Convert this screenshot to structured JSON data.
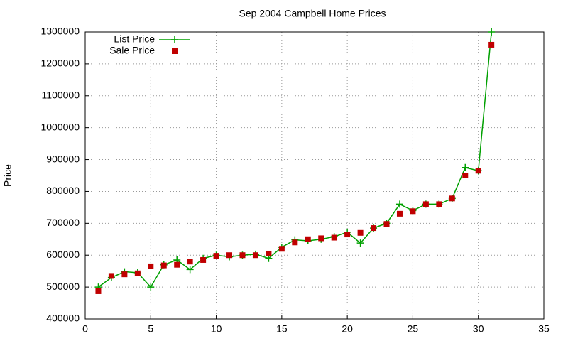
{
  "chart_data": {
    "type": "line",
    "title": "Sep 2004 Campbell Home Prices",
    "y_label": "Price",
    "x": [
      1,
      2,
      3,
      4,
      5,
      6,
      7,
      8,
      9,
      10,
      11,
      12,
      13,
      14,
      15,
      16,
      17,
      18,
      19,
      20,
      21,
      22,
      23,
      24,
      25,
      26,
      27,
      28,
      29,
      30,
      31
    ],
    "series": [
      {
        "name": "List Price",
        "color": "#00a000",
        "line": true,
        "marker": "plus",
        "values": [
          500000,
          530000,
          548000,
          545000,
          500000,
          570000,
          585000,
          555000,
          590000,
          600000,
          595000,
          600000,
          603000,
          590000,
          625000,
          648000,
          645000,
          650000,
          658000,
          672000,
          638000,
          685000,
          700000,
          760000,
          740000,
          760000,
          760000,
          778000,
          875000,
          865000,
          1300000
        ]
      },
      {
        "name": "Sale Price",
        "color": "#c00000",
        "line": false,
        "marker": "square",
        "values": [
          487000,
          535000,
          540000,
          543000,
          565000,
          568000,
          570000,
          580000,
          585000,
          598000,
          600000,
          600000,
          600000,
          605000,
          620000,
          640000,
          650000,
          653000,
          655000,
          665000,
          670000,
          685000,
          698000,
          730000,
          738000,
          760000,
          760000,
          778000,
          850000,
          865000,
          1260000
        ]
      }
    ],
    "xlim": [
      0,
      35
    ],
    "xticks": [
      0,
      5,
      10,
      15,
      20,
      25,
      30,
      35
    ],
    "ylim": [
      400000,
      1300000
    ],
    "yticks": [
      400000,
      500000,
      600000,
      700000,
      800000,
      900000,
      1000000,
      1100000,
      1200000,
      1300000
    ],
    "grid": true,
    "legend": "top-left"
  }
}
